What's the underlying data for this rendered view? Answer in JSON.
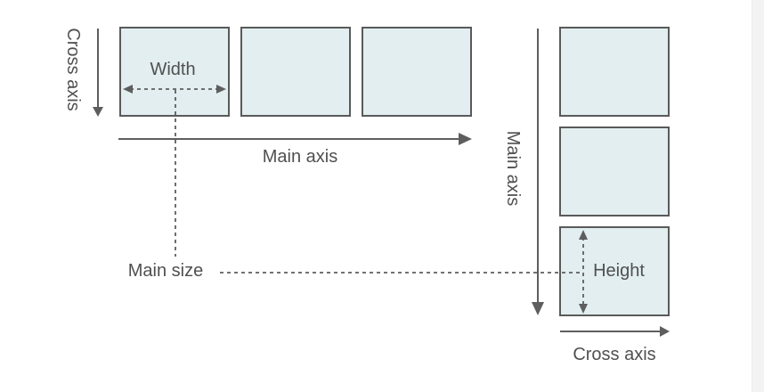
{
  "labels": {
    "cross_axis_left": "Cross axis",
    "width": "Width",
    "main_axis_horizontal": "Main axis",
    "main_size": "Main size",
    "main_axis_vertical": "Main axis",
    "height": "Height",
    "cross_axis_bottom": "Cross axis"
  },
  "colors": {
    "box_fill": "#e2eef0",
    "box_stroke": "#5a5a5a",
    "line": "#5e5e5e",
    "text": "#505050"
  }
}
